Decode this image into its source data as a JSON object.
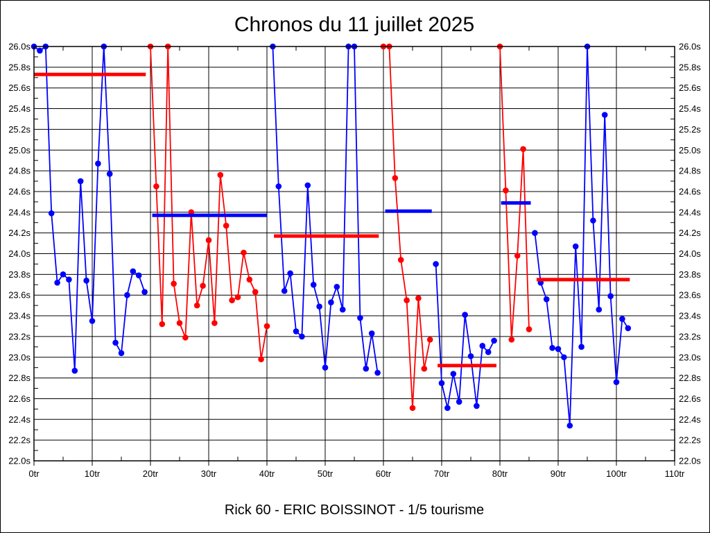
{
  "window": {
    "title": "Chronos du 11 juillet 2025",
    "footer": "Rick 60 - ERIC BOISSINOT - 1/5 tourisme"
  },
  "chart_data": {
    "type": "line",
    "title": "Chronos du 11 juillet 2025",
    "footer": "Rick 60 - ERIC BOISSINOT - 1/5 tourisme",
    "grid": "on",
    "legend": "none",
    "x_axis": {
      "unit": "tr",
      "min": 0,
      "max": 110,
      "tick_step": 10,
      "minor_tick_step": 5,
      "tick_labels": [
        "0tr",
        "10tr",
        "20tr",
        "30tr",
        "40tr",
        "50tr",
        "60tr",
        "70tr",
        "80tr",
        "90tr",
        "100tr",
        "110tr"
      ]
    },
    "y_axis": {
      "unit": "s",
      "min": 22.0,
      "max": 26.0,
      "tick_step": 0.2,
      "minor_tick_step": 0.1,
      "tick_labels": [
        "26.0s",
        "25.8s",
        "25.6s",
        "25.4s",
        "25.2s",
        "25.0s",
        "24.8s",
        "24.6s",
        "24.4s",
        "24.2s",
        "24.0s",
        "23.8s",
        "23.6s",
        "23.4s",
        "23.2s",
        "23.0s",
        "22.8s",
        "22.6s",
        "22.4s",
        "22.2s",
        "22.0s"
      ]
    },
    "colors": {
      "blue": "#0000FF",
      "red": "#FF0000"
    },
    "series": [
      {
        "name": "stint-1",
        "color": "blue",
        "start_x": 0,
        "values": [
          26.0,
          25.96,
          26.0,
          24.39,
          23.72,
          23.8,
          23.75,
          22.87,
          24.7,
          23.74,
          23.35,
          24.87,
          26.0,
          24.77,
          23.14,
          23.04,
          23.6,
          23.83,
          23.79,
          23.63
        ]
      },
      {
        "name": "stint-2",
        "color": "red",
        "start_x": 20,
        "values": [
          26.0,
          24.65,
          23.32,
          26.0,
          23.71,
          23.33,
          23.19,
          24.4,
          23.5,
          23.69,
          24.13,
          23.33,
          24.76,
          24.27,
          23.55,
          23.58,
          24.01,
          23.75,
          23.63,
          22.98,
          23.3
        ]
      },
      {
        "name": "stint-3",
        "color": "blue",
        "start_x": 41,
        "values": [
          26.0,
          24.65,
          23.64,
          23.81,
          23.25,
          23.2,
          24.66,
          23.7,
          23.49,
          22.9,
          23.53,
          23.68,
          23.46,
          26.0,
          26.0,
          23.38,
          22.89,
          23.23,
          22.85
        ]
      },
      {
        "name": "stint-4",
        "color": "red",
        "start_x": 60,
        "values": [
          26.0,
          26.0,
          24.73,
          23.94,
          23.55,
          22.51,
          23.57,
          22.89,
          23.17
        ]
      },
      {
        "name": "stint-5",
        "color": "blue",
        "start_x": 69,
        "values": [
          23.9,
          22.75,
          22.51,
          22.84,
          22.57,
          23.41,
          23.01,
          22.53,
          23.11,
          23.05,
          23.16
        ]
      },
      {
        "name": "stint-6",
        "color": "red",
        "start_x": 80,
        "values": [
          26.0,
          24.61,
          23.17,
          23.98,
          25.01,
          23.27
        ]
      },
      {
        "name": "stint-7",
        "color": "blue",
        "start_x": 86,
        "values": [
          24.2,
          23.72,
          23.56,
          23.09,
          23.08,
          23.0,
          22.34,
          24.07,
          23.1,
          26.0,
          24.32,
          23.46,
          25.34,
          23.59,
          22.76,
          23.37,
          23.28
        ]
      }
    ],
    "average_lines": [
      {
        "color": "red",
        "value": 25.73,
        "x_start": 0.0,
        "x_end": 19.2
      },
      {
        "color": "blue",
        "value": 24.37,
        "x_start": 20.3,
        "x_end": 40.0
      },
      {
        "color": "red",
        "value": 24.17,
        "x_start": 41.2,
        "x_end": 59.2
      },
      {
        "color": "blue",
        "value": 24.41,
        "x_start": 60.3,
        "x_end": 68.3
      },
      {
        "color": "red",
        "value": 22.92,
        "x_start": 69.3,
        "x_end": 79.4
      },
      {
        "color": "blue",
        "value": 24.49,
        "x_start": 80.2,
        "x_end": 85.3
      },
      {
        "color": "red",
        "value": 23.75,
        "x_start": 86.3,
        "x_end": 102.3
      }
    ]
  }
}
